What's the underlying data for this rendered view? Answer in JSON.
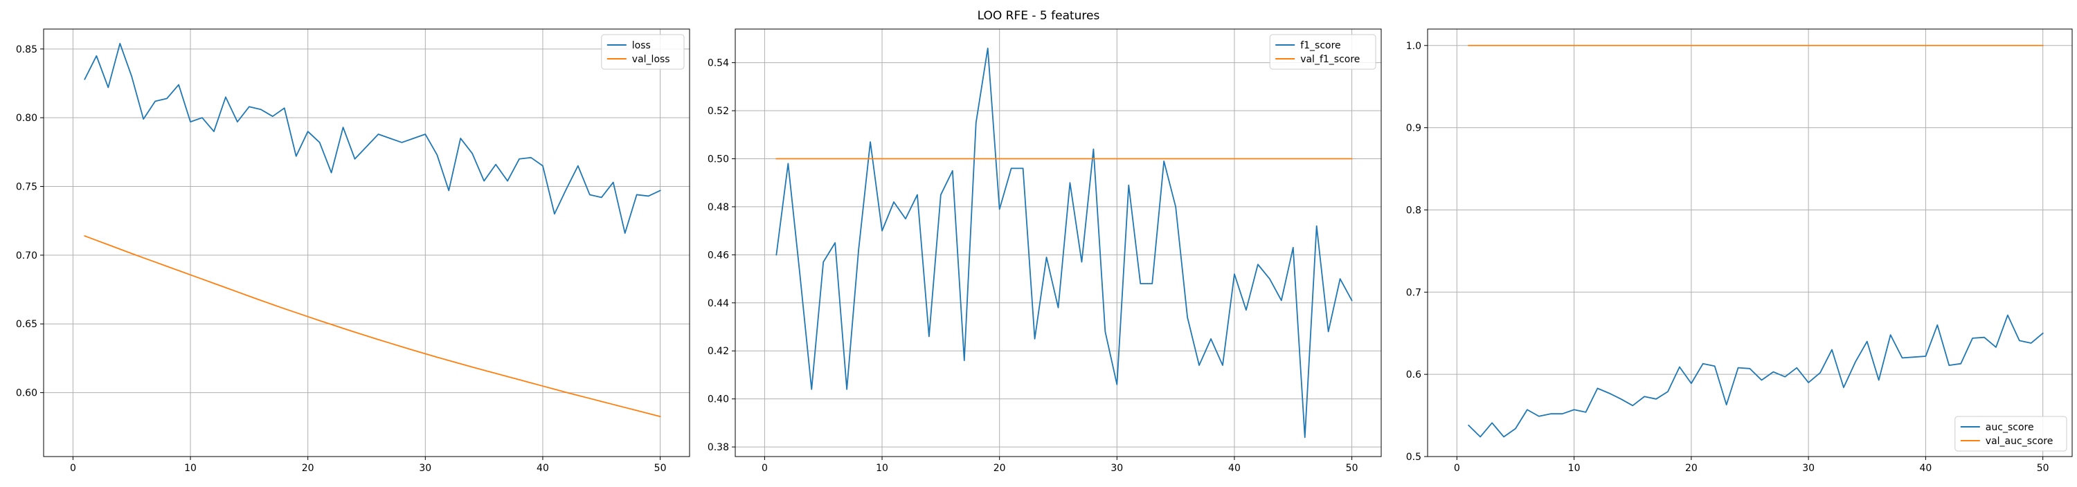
{
  "title": "LOO RFE - 5 features",
  "colors": {
    "blue": "#1f77b4",
    "orange": "#ff7f0e",
    "grid": "#b0b0b0",
    "axis": "#000000"
  },
  "chart_data": [
    {
      "type": "line",
      "title": "",
      "xlabel": "",
      "ylabel": "",
      "grid": true,
      "legend_position": "top-right",
      "xlim": [
        -2.5,
        52.5
      ],
      "ylim": [
        0.5535,
        0.8645
      ],
      "xticks": [
        0,
        10,
        20,
        30,
        40,
        50
      ],
      "yticks": [
        0.6,
        0.65,
        0.7,
        0.75,
        0.8,
        0.85
      ],
      "x": [
        1,
        2,
        3,
        4,
        5,
        6,
        7,
        8,
        9,
        10,
        11,
        12,
        13,
        14,
        15,
        16,
        17,
        18,
        19,
        20,
        21,
        22,
        23,
        24,
        25,
        26,
        27,
        28,
        29,
        30,
        31,
        32,
        33,
        34,
        35,
        36,
        37,
        38,
        39,
        40,
        41,
        42,
        43,
        44,
        45,
        46,
        47,
        48,
        49,
        50
      ],
      "series": [
        {
          "name": "loss",
          "color": "#1f77b4",
          "values": [
            0.828,
            0.845,
            0.822,
            0.854,
            0.83,
            0.799,
            0.812,
            0.814,
            0.824,
            0.797,
            0.8,
            0.79,
            0.815,
            0.797,
            0.808,
            0.806,
            0.801,
            0.807,
            0.772,
            0.79,
            0.782,
            0.76,
            0.793,
            0.77,
            0.779,
            0.788,
            0.785,
            0.782,
            0.785,
            0.788,
            0.773,
            0.747,
            0.785,
            0.774,
            0.754,
            0.766,
            0.754,
            0.77,
            0.771,
            0.765,
            0.73,
            0.748,
            0.765,
            0.744,
            0.742,
            0.753,
            0.716,
            0.744,
            0.743,
            0.747
          ]
        },
        {
          "name": "val_loss",
          "color": "#ff7f0e",
          "values": [
            0.714,
            0.7108,
            0.7076,
            0.7044,
            0.7012,
            0.6981,
            0.695,
            0.6919,
            0.6888,
            0.6857,
            0.6826,
            0.6795,
            0.6764,
            0.6733,
            0.6702,
            0.6671,
            0.6641,
            0.6611,
            0.6582,
            0.6553,
            0.6524,
            0.6496,
            0.6468,
            0.644,
            0.6413,
            0.6386,
            0.636,
            0.6334,
            0.6308,
            0.6283,
            0.6258,
            0.6234,
            0.621,
            0.6186,
            0.6163,
            0.614,
            0.6117,
            0.6094,
            0.6071,
            0.6048,
            0.6025,
            0.6002,
            0.598,
            0.5958,
            0.5936,
            0.5914,
            0.5892,
            0.587,
            0.5848,
            0.5826
          ]
        }
      ]
    },
    {
      "type": "line",
      "title": "",
      "xlabel": "",
      "ylabel": "",
      "grid": true,
      "legend_position": "top-right",
      "xlim": [
        -2.5,
        52.5
      ],
      "ylim": [
        0.376,
        0.554
      ],
      "xticks": [
        0,
        10,
        20,
        30,
        40,
        50
      ],
      "yticks": [
        0.38,
        0.4,
        0.42,
        0.44,
        0.46,
        0.48,
        0.5,
        0.52,
        0.54
      ],
      "x": [
        1,
        2,
        3,
        4,
        5,
        6,
        7,
        8,
        9,
        10,
        11,
        12,
        13,
        14,
        15,
        16,
        17,
        18,
        19,
        20,
        21,
        22,
        23,
        24,
        25,
        26,
        27,
        28,
        29,
        30,
        31,
        32,
        33,
        34,
        35,
        36,
        37,
        38,
        39,
        40,
        41,
        42,
        43,
        44,
        45,
        46,
        47,
        48,
        49,
        50
      ],
      "series": [
        {
          "name": "f1_score",
          "color": "#1f77b4",
          "values": [
            0.46,
            0.498,
            0.452,
            0.404,
            0.457,
            0.465,
            0.404,
            0.462,
            0.507,
            0.47,
            0.482,
            0.475,
            0.485,
            0.426,
            0.485,
            0.495,
            0.416,
            0.515,
            0.546,
            0.479,
            0.496,
            0.496,
            0.425,
            0.459,
            0.438,
            0.49,
            0.457,
            0.504,
            0.428,
            0.406,
            0.489,
            0.448,
            0.448,
            0.499,
            0.48,
            0.434,
            0.414,
            0.425,
            0.414,
            0.452,
            0.437,
            0.456,
            0.45,
            0.441,
            0.463,
            0.384,
            0.472,
            0.428,
            0.45,
            0.441
          ]
        },
        {
          "name": "val_f1_score",
          "color": "#ff7f0e",
          "values": [
            0.5,
            0.5,
            0.5,
            0.5,
            0.5,
            0.5,
            0.5,
            0.5,
            0.5,
            0.5,
            0.5,
            0.5,
            0.5,
            0.5,
            0.5,
            0.5,
            0.5,
            0.5,
            0.5,
            0.5,
            0.5,
            0.5,
            0.5,
            0.5,
            0.5,
            0.5,
            0.5,
            0.5,
            0.5,
            0.5,
            0.5,
            0.5,
            0.5,
            0.5,
            0.5,
            0.5,
            0.5,
            0.5,
            0.5,
            0.5,
            0.5,
            0.5,
            0.5,
            0.5,
            0.5,
            0.5,
            0.5,
            0.5,
            0.5,
            0.5
          ]
        }
      ]
    },
    {
      "type": "line",
      "title": "",
      "xlabel": "",
      "ylabel": "",
      "grid": true,
      "legend_position": "bottom-right",
      "xlim": [
        -2.5,
        52.5
      ],
      "ylim": [
        0.5,
        1.02
      ],
      "xticks": [
        0,
        10,
        20,
        30,
        40,
        50
      ],
      "yticks": [
        0.5,
        0.6,
        0.7,
        0.8,
        0.9,
        1.0
      ],
      "x": [
        1,
        2,
        3,
        4,
        5,
        6,
        7,
        8,
        9,
        10,
        11,
        12,
        13,
        14,
        15,
        16,
        17,
        18,
        19,
        20,
        21,
        22,
        23,
        24,
        25,
        26,
        27,
        28,
        29,
        30,
        31,
        32,
        33,
        34,
        35,
        36,
        37,
        38,
        39,
        40,
        41,
        42,
        43,
        44,
        45,
        46,
        47,
        48,
        49,
        50
      ],
      "series": [
        {
          "name": "auc_score",
          "color": "#1f77b4",
          "values": [
            0.538,
            0.524,
            0.541,
            0.524,
            0.534,
            0.557,
            0.549,
            0.552,
            0.552,
            0.557,
            0.554,
            0.583,
            0.577,
            0.57,
            0.562,
            0.573,
            0.57,
            0.579,
            0.609,
            0.589,
            0.613,
            0.61,
            0.563,
            0.608,
            0.607,
            0.593,
            0.603,
            0.597,
            0.608,
            0.59,
            0.602,
            0.63,
            0.584,
            0.615,
            0.64,
            0.593,
            0.648,
            0.62,
            0.621,
            0.622,
            0.66,
            0.611,
            0.613,
            0.644,
            0.645,
            0.633,
            0.672,
            0.641,
            0.638,
            0.65
          ]
        },
        {
          "name": "val_auc_score",
          "color": "#ff7f0e",
          "values": [
            1.0,
            1.0,
            1.0,
            1.0,
            1.0,
            1.0,
            1.0,
            1.0,
            1.0,
            1.0,
            1.0,
            1.0,
            1.0,
            1.0,
            1.0,
            1.0,
            1.0,
            1.0,
            1.0,
            1.0,
            1.0,
            1.0,
            1.0,
            1.0,
            1.0,
            1.0,
            1.0,
            1.0,
            1.0,
            1.0,
            1.0,
            1.0,
            1.0,
            1.0,
            1.0,
            1.0,
            1.0,
            1.0,
            1.0,
            1.0,
            1.0,
            1.0,
            1.0,
            1.0,
            1.0,
            1.0,
            1.0,
            1.0,
            1.0,
            1.0
          ]
        }
      ]
    }
  ]
}
